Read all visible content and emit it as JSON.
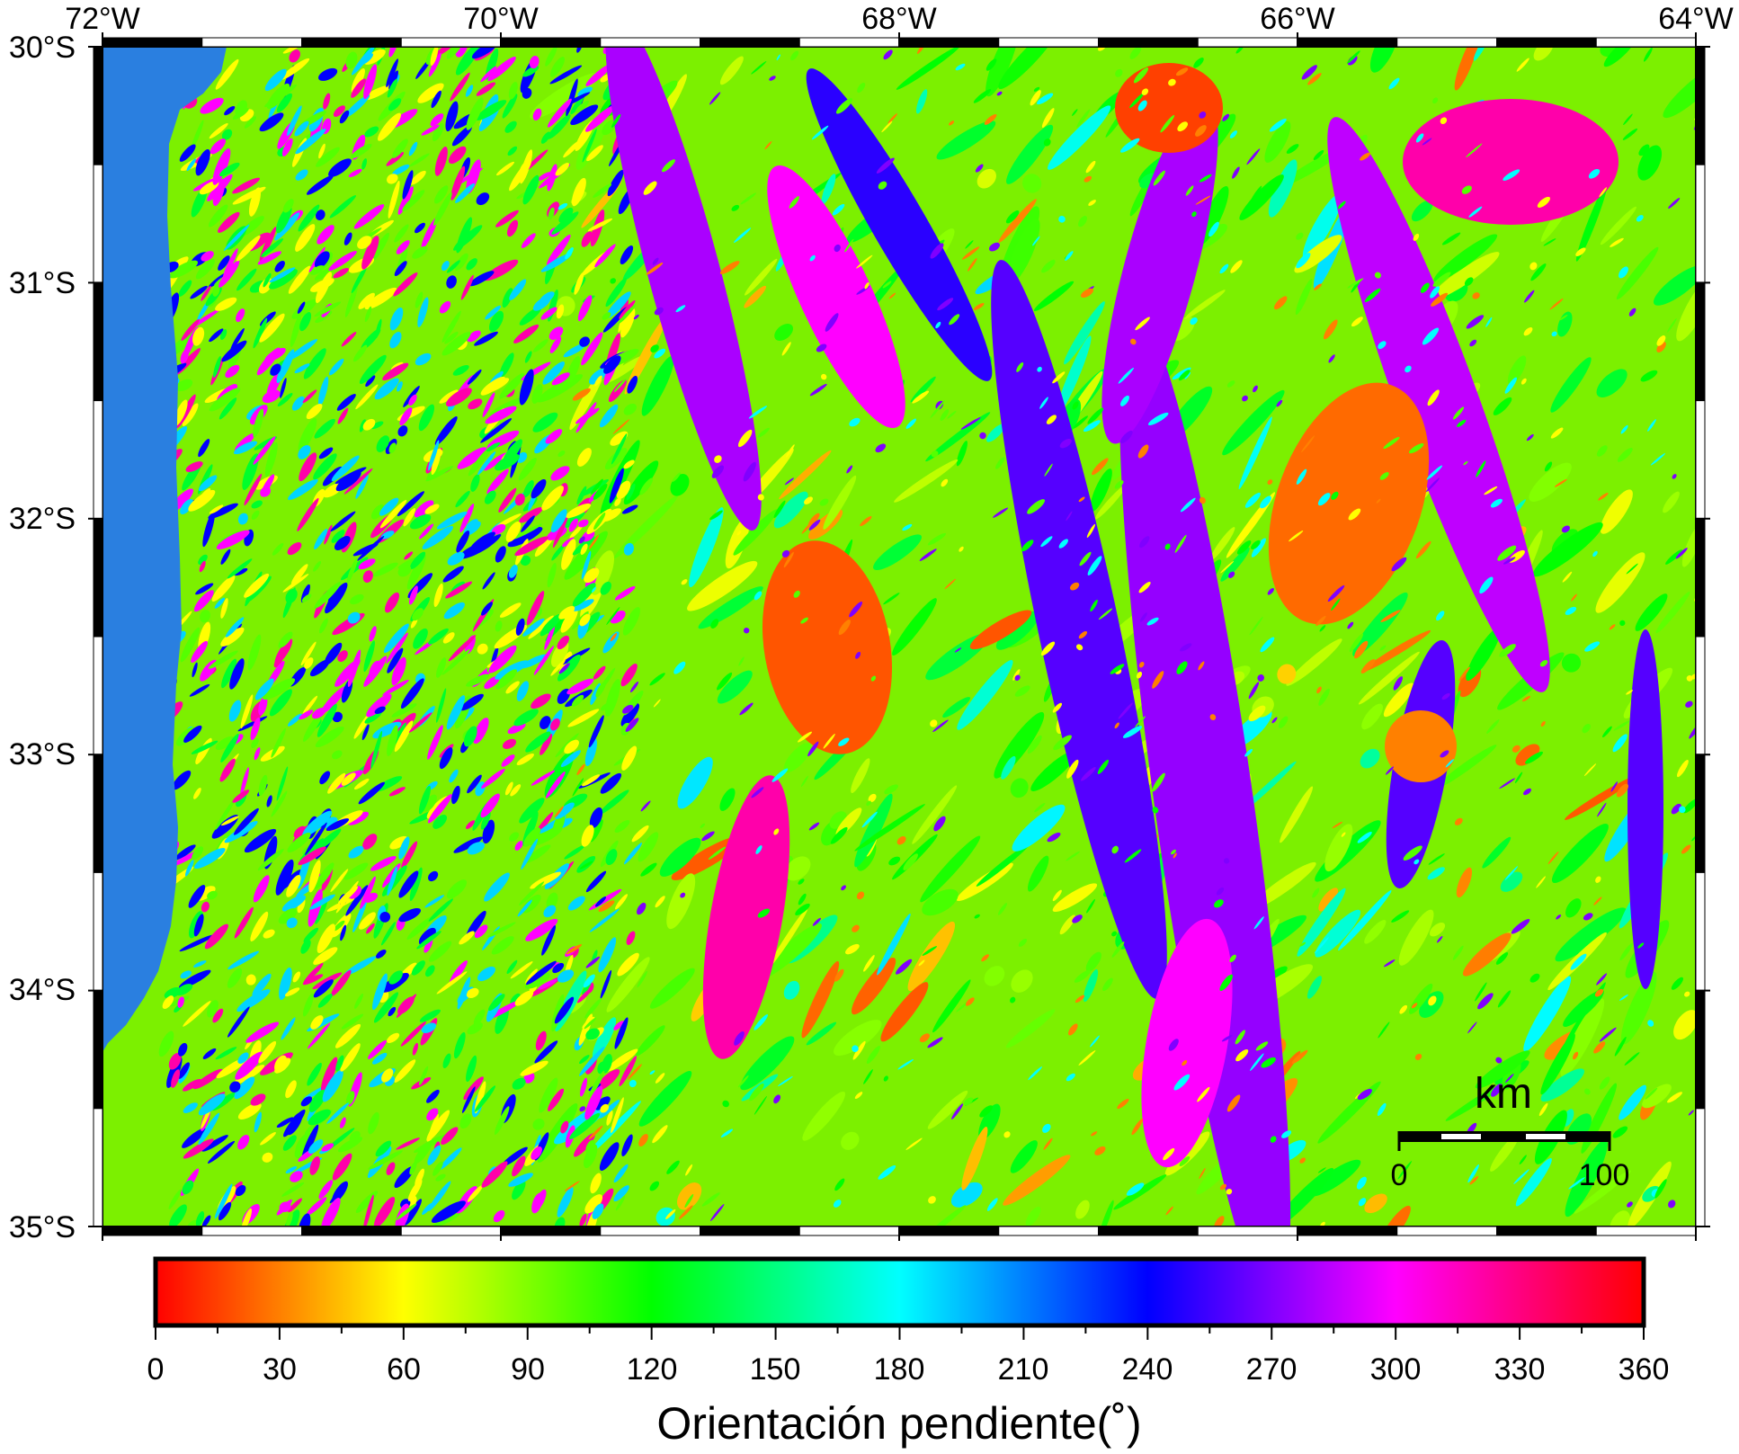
{
  "map": {
    "lon_ticks": [
      "72°W",
      "70°W",
      "68°W",
      "66°W",
      "64°W"
    ],
    "lat_ticks": [
      "30°S",
      "31°S",
      "32°S",
      "33°S",
      "34°S",
      "35°S"
    ],
    "extent": {
      "west_deg": -72,
      "east_deg": -64,
      "north_deg": -30,
      "south_deg": -35
    },
    "ocean_color": "#2a7fe0",
    "palette": [
      "#ff0000",
      "#ffff00",
      "#00ff00",
      "#00ffff",
      "#0000ff",
      "#ff00ff",
      "#ff0000"
    ]
  },
  "scalebar": {
    "unit": "km",
    "label_start": "0",
    "label_end": "100"
  },
  "colorbar": {
    "tick_labels": [
      "0",
      "30",
      "60",
      "90",
      "120",
      "150",
      "180",
      "210",
      "240",
      "270",
      "300",
      "330",
      "360"
    ],
    "min": 0,
    "max": 360,
    "title": "Orientación pendiente(˚)"
  }
}
